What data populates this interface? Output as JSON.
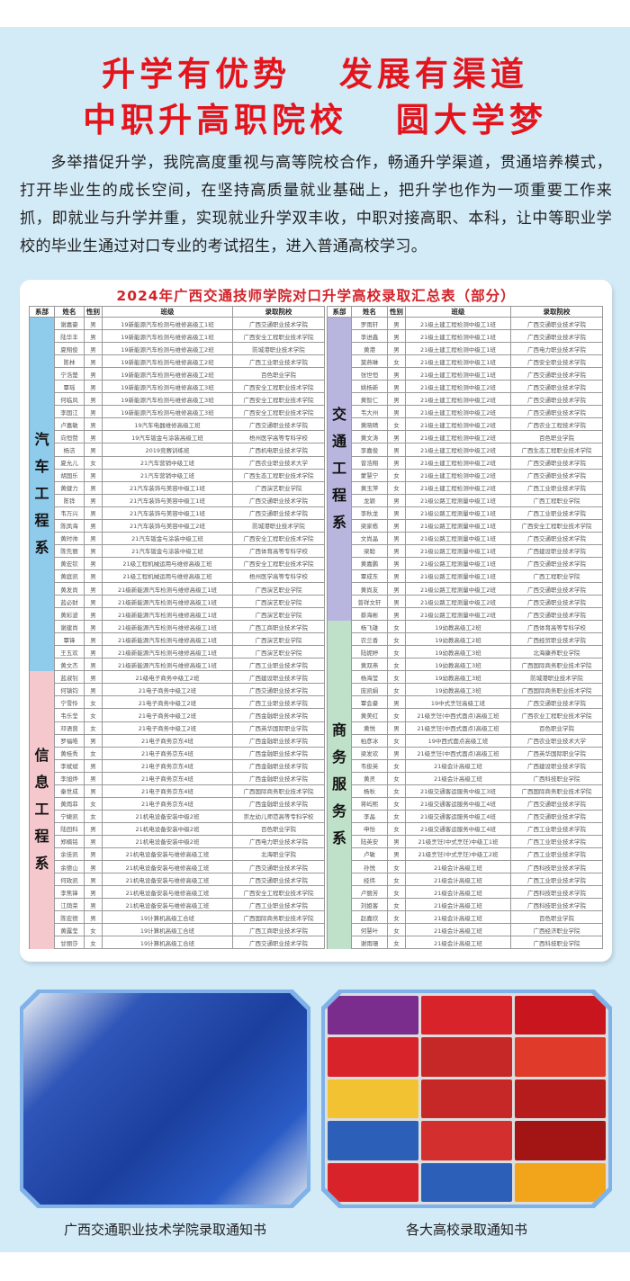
{
  "headline": {
    "line1": "升学有优势   发展有渠道",
    "line2": "中职升高职院校   圆大学梦",
    "color": "#e4141c"
  },
  "intro": "多举措促升学，我院高度重视与高等院校合作，畅通升学渠道，贯通培养模式，打开毕业生的成长空间，在坚持高质量就业基础上，把升学也作为一项重要工作来抓，即就业与升学并重，实现就业升学双丰收，中职对接高职、本科，让中等职业学校的毕业生通过对口专业的考试招生，进入普通高校学习。",
  "table_title": "2024年广西交通技师学院对口升学高校录取汇总表（部分）",
  "columns": [
    "系部",
    "姓名",
    "性别",
    "班级",
    "录取院校"
  ],
  "left_sections": [
    {
      "dept": "汽车工程系",
      "color": "#8fcbeb",
      "rows": [
        [
          "谢嘉豪",
          "男",
          "19新能源汽车检测与维修高级工1班",
          "广西交通职业技术学院"
        ],
        [
          "陆华丰",
          "男",
          "19新能源汽车检测与维修高级工1班",
          "广西安全工程职业技术学院"
        ],
        [
          "夏翔俊",
          "男",
          "19新能源汽车检测与维修高级工2班",
          "防城港职业技术学院"
        ],
        [
          "陈林",
          "男",
          "19新能源汽车检测与维修高级工2班",
          "广西工业职业技术学院"
        ],
        [
          "宁浩楚",
          "男",
          "19新能源汽车检测与维修高级工2班",
          "百色职业学院"
        ],
        [
          "覃瑶",
          "男",
          "19新能源汽车检测与维修高级工3班",
          "广西安全工程职业技术学院"
        ],
        [
          "何临风",
          "男",
          "19新能源汽车检测与维修高级工3班",
          "广西安全工程职业技术学院"
        ],
        [
          "李国江",
          "男",
          "19新能源汽车检测与维修高级工3班",
          "广西安全工程职业技术学院"
        ],
        [
          "卢嘉敏",
          "男",
          "19汽车电器维修高级工班",
          "广西交通职业技术学院"
        ],
        [
          "向恒赞",
          "男",
          "19汽车钣金与涂装高级工班",
          "梧州医学高等专科学校"
        ],
        [
          "杨洁",
          "男",
          "2019竞赛训练班",
          "广西机电职业技术学院"
        ],
        [
          "夏允儿",
          "女",
          "21汽车营销中级工班",
          "广西农业职业技术大学"
        ],
        [
          "胡国乐",
          "男",
          "21汽车营销中级工班",
          "广西生态工程职业技术学院"
        ],
        [
          "黄健力",
          "男",
          "21汽车装饰与美容中级工1班",
          "广西演艺职业学院"
        ],
        [
          "陈铧",
          "男",
          "21汽车装饰与美容中级工1班",
          "广西交通职业技术学院"
        ],
        [
          "韦万兴",
          "男",
          "21汽车装饰与美容中级工1班",
          "广西交通职业技术学院"
        ],
        [
          "陈凤海",
          "男",
          "21汽车装饰与美容中级工2班",
          "防城港职业技术学院"
        ],
        [
          "黄时帅",
          "男",
          "21汽车钣金与涂装中级工班",
          "广西安全工程职业技术学院"
        ],
        [
          "陈先丽",
          "男",
          "21汽车钣金与涂装中级工班",
          "广西体育高等专科学校"
        ],
        [
          "黄宏钦",
          "男",
          "21级工程机械运用与维修高级工班",
          "广西安全工程职业技术学院"
        ],
        [
          "黄庭凯",
          "男",
          "21级工程机械运用与维修高级工班",
          "梧州医学高等专科学校"
        ],
        [
          "黄发尚",
          "男",
          "21级新能源汽车检测与维修高级工1班",
          "广西演艺职业学院"
        ],
        [
          "蓝必财",
          "男",
          "21级新能源汽车检测与维修高级工1班",
          "广西演艺职业学院"
        ],
        [
          "黄彩波",
          "男",
          "21级新能源汽车检测与维修高级工1班",
          "广西演艺职业学院"
        ],
        [
          "谢建尚",
          "男",
          "21级新能源汽车检测与维修高级工1班",
          "广西工商职业技术学院"
        ],
        [
          "覃锋",
          "男",
          "21级新能源汽车检测与维修高级工1班",
          "广西演艺职业学院"
        ],
        [
          "王五欢",
          "男",
          "21级新能源汽车检测与维修高级工1班",
          "广西演艺职业学院"
        ],
        [
          "黄文杰",
          "男",
          "21级新能源汽车检测与维修高级工1班",
          "广西工业职业技术学院"
        ]
      ]
    },
    {
      "dept": "信息工程系",
      "color": "#f5c8ce",
      "rows": [
        [
          "蓝淑钊",
          "男",
          "21级电子商务中级工2班",
          "广西建设职业技术学院"
        ],
        [
          "何镇钧",
          "男",
          "21电子商务中级工2班",
          "广西交通职业技术学院"
        ],
        [
          "宁雪怜",
          "女",
          "21电子商务中级工2班",
          "广西工业职业技术学院"
        ],
        [
          "韦乐莹",
          "女",
          "21电子商务中级工2班",
          "广西金融职业技术学院"
        ],
        [
          "邓语茵",
          "女",
          "21电子商务中级工2班",
          "广西英华国际职业学院"
        ],
        [
          "罗福皓",
          "男",
          "21电子商务京东4班",
          "广西金融职业技术学院"
        ],
        [
          "黄桂秀",
          "女",
          "21电子商务京东4班",
          "广西金融职业技术学院"
        ],
        [
          "李斌斌",
          "男",
          "21电子商务京东4班",
          "广西金融职业技术学院"
        ],
        [
          "李旭烨",
          "男",
          "21电子商务京东4班",
          "广西金融职业技术学院"
        ],
        [
          "秦世成",
          "男",
          "21电子商务京东4班",
          "广西国际商务职业技术学院"
        ],
        [
          "黄雨菲",
          "女",
          "21电子商务京东4班",
          "广西金融职业技术学院"
        ],
        [
          "宁婕凯",
          "女",
          "21机电设备安装中级2班",
          "崇左幼儿师范高等专科学校"
        ],
        [
          "陆田科",
          "男",
          "21机电设备安装中级2班",
          "百色职业学院"
        ],
        [
          "郑楠铭",
          "男",
          "21机电设备安装中级2班",
          "广西电力职业技术学院"
        ],
        [
          "余佳凯",
          "男",
          "21机电设备安装与维修高级工班",
          "北海职业学院"
        ],
        [
          "余德山",
          "男",
          "21机电设备安装与维修高级工班",
          "广西交通职业技术学院"
        ],
        [
          "何政凯",
          "男",
          "21机电设备安装与维修高级工班",
          "广西交通职业技术学院"
        ],
        [
          "李焦锋",
          "男",
          "21机电设备安装与维修高级工班",
          "广西安全工程职业技术学院"
        ],
        [
          "江荫荣",
          "男",
          "21机电设备安装与维修高级工班",
          "广西工业职业技术学院"
        ],
        [
          "陈宏德",
          "男",
          "19计算机高级工合班",
          "广西国际商务职业技术学院"
        ],
        [
          "黄露莹",
          "女",
          "19计算机高级工合班",
          "广西工商职业技术学院"
        ],
        [
          "甘丽莎",
          "女",
          "19计算机高级工合班",
          "广西交通职业技术学院"
        ]
      ]
    }
  ],
  "right_sections": [
    {
      "dept": "交通工程系",
      "color": "#b8b6de",
      "rows": [
        [
          "罗雨轩",
          "男",
          "21级土建工程检测中级工1班",
          "广西交通职业技术学院"
        ],
        [
          "李进鑫",
          "男",
          "21级土建工程检测中级工1班",
          "广西交通职业技术学院"
        ],
        [
          "黄港",
          "男",
          "21级土建工程检测中级工1班",
          "广西电力职业技术学院"
        ],
        [
          "莫燕琳",
          "女",
          "21级土建工程检测中级工1班",
          "广西安全职业技术学院"
        ],
        [
          "张世恒",
          "男",
          "21级土建工程检测中级工1班",
          "广西交通职业技术学院"
        ],
        [
          "姚杨新",
          "男",
          "21级土建工程检测中级工2班",
          "广西交通职业技术学院"
        ],
        [
          "黄智仁",
          "男",
          "21级土建工程检测中级工2班",
          "广西交通职业技术学院"
        ],
        [
          "韦大州",
          "男",
          "21级土建工程检测中级工2班",
          "广西交通职业技术学院"
        ],
        [
          "黄晓晴",
          "女",
          "21级土建工程检测中级工2班",
          "广西农业工程技术学院"
        ],
        [
          "黄文涛",
          "男",
          "21级土建工程检测中级工2班",
          "百色职业学院"
        ],
        [
          "李嘉俊",
          "男",
          "21级土建工程检测中级工2班",
          "广西生态工程职业技术学院"
        ],
        [
          "曾浩翔",
          "男",
          "21级土建工程检测中级工2班",
          "广西交通职业技术学院"
        ],
        [
          "蒙慧宁",
          "女",
          "21级土建工程检测中级工2班",
          "广西交通职业技术学院"
        ],
        [
          "黄玉萍",
          "女",
          "21级土建工程检测中级工2班",
          "广西工业职业技术学院"
        ],
        [
          "龙颖",
          "男",
          "21级公路工程测量中级工1班",
          "广西工程职业学院"
        ],
        [
          "李秋龙",
          "男",
          "21级公路工程测量中级工1班",
          "广西工业职业技术学院"
        ],
        [
          "梁家栋",
          "男",
          "21级公路工程测量中级工1班",
          "广西安全工程职业技术学院"
        ],
        [
          "文尚晶",
          "男",
          "21级公路工程测量中级工1班",
          "广西交通职业技术学院"
        ],
        [
          "梁聪",
          "男",
          "21级公路工程测量中级工1班",
          "广西建设职业技术学院"
        ],
        [
          "黄嘉鹏",
          "男",
          "21级公路工程测量中级工1班",
          "广西交通职业技术学院"
        ],
        [
          "覃成东",
          "男",
          "21级公路工程测量中级工1班",
          "广西工程职业学院"
        ],
        [
          "黄尚友",
          "男",
          "21级公路工程测量中级工2班",
          "广西交通职业技术学院"
        ],
        [
          "曾祥文轩",
          "男",
          "21级公路工程测量中级工2班",
          "广西交通职业技术学院"
        ],
        [
          "蔡海彬",
          "男",
          "21级公路工程测量中级工2班",
          "广西交通职业技术学院"
        ]
      ]
    },
    {
      "dept": "商务服务系",
      "color": "#bfe0c9",
      "rows": [
        [
          "杨飞雄",
          "女",
          "19幼教高级工2班",
          "广西体育高等专科学校"
        ],
        [
          "农兰香",
          "女",
          "19幼教高级工2班",
          "广西经贸职业技术学院"
        ],
        [
          "陆妮婷",
          "女",
          "19幼教高级工3班",
          "北海康养职业学院"
        ],
        [
          "黄双燕",
          "女",
          "19幼教高级工3班",
          "广西国际商务职业技术学院"
        ],
        [
          "杨海莹",
          "女",
          "19幼教高级工3班",
          "防城港职业技术学院"
        ],
        [
          "庞凯娟",
          "女",
          "19幼教高级工3班",
          "广西国际商务职业技术学院"
        ],
        [
          "覃会豪",
          "男",
          "19中式烹饪高级工班",
          "广西交通职业技术学院"
        ],
        [
          "黄美红",
          "女",
          "21级烹饪(中西式面点)高级工班",
          "广西农业工程职业技术学院"
        ],
        [
          "黄悦",
          "男",
          "21级烹饪(中西式面点)高级工班",
          "百色职业学院"
        ],
        [
          "柏彦冰",
          "女",
          "19中西式面点高级工班",
          "广西农业职业技术大学"
        ],
        [
          "梁发欢",
          "男",
          "21级烹饪(中西式面点)高级工班",
          "广西英华国际职业学院"
        ],
        [
          "韦俊英",
          "女",
          "21级会计高级工班",
          "广西建设职业技术学院"
        ],
        [
          "黄灵",
          "女",
          "21级会计高级工班",
          "广西科技职业学院"
        ],
        [
          "杨秋",
          "女",
          "21级交通客运服务中级工3班",
          "广西国际商务职业技术学院"
        ],
        [
          "蒋屿熙",
          "女",
          "21级交通客运服务中级工4班",
          "广西交通职业技术学院"
        ],
        [
          "李晶",
          "女",
          "21级交通客运服务中级工4班",
          "广西交通职业技术学院"
        ],
        [
          "申怡",
          "女",
          "21级交通客运服务中级工4班",
          "广西工业职业技术学院"
        ],
        [
          "陆英安",
          "男",
          "21级烹饪(中式烹饪)中级工1班",
          "广西工业职业技术学院"
        ],
        [
          "卢敏",
          "男",
          "21级烹饪(中式烹饪)中级工2班",
          "广西工业职业技术学院"
        ],
        [
          "孙悦",
          "女",
          "21级会计高级工班",
          "广西科技职业技术学院"
        ],
        [
          "经纬",
          "女",
          "21级会计高级工班",
          "广西工业职业技术学院"
        ],
        [
          "卢丽芳",
          "女",
          "21级会计高级工班",
          "广西科技职业技术学院"
        ],
        [
          "刘姐客",
          "女",
          "21级会计高级工班",
          "广西科技职业技术学院"
        ],
        [
          "赵嘉欣",
          "女",
          "21级会计高级工班",
          "百色职业学院"
        ],
        [
          "何慧叶",
          "女",
          "21级会计高级工班",
          "广西经济职业学院"
        ],
        [
          "谢雨珊",
          "女",
          "21级会计高级工班",
          "广西科技职业学院"
        ]
      ]
    }
  ],
  "photos": {
    "left_caption": "广西交通职业技术学院录取通知书",
    "right_caption": "各大高校录取通知书"
  }
}
